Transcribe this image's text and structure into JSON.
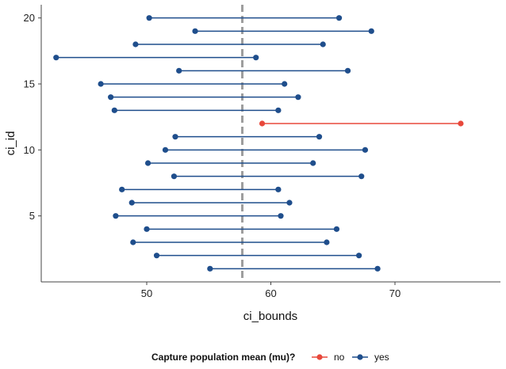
{
  "chart_data": {
    "type": "line",
    "title": "",
    "xlabel": "ci_bounds",
    "ylabel": "ci_id",
    "xlim": [
      41.5,
      78.5
    ],
    "ylim": [
      0,
      21
    ],
    "x_ticks": [
      50,
      60,
      70
    ],
    "y_ticks": [
      5,
      10,
      15,
      20
    ],
    "grid": false,
    "reference_line": {
      "x": 57.7,
      "style": "dashed",
      "color": "#9e9e9e"
    },
    "legend": {
      "position": "bottom",
      "title": "Capture population mean (mu)?",
      "entries": [
        {
          "label": "no",
          "color": "#e8483b"
        },
        {
          "label": "yes",
          "color": "#1f4e8c"
        }
      ]
    },
    "intervals": [
      {
        "id": 1,
        "lower": 55.1,
        "upper": 68.6,
        "capture": "yes"
      },
      {
        "id": 2,
        "lower": 50.8,
        "upper": 67.1,
        "capture": "yes"
      },
      {
        "id": 3,
        "lower": 48.9,
        "upper": 64.5,
        "capture": "yes"
      },
      {
        "id": 4,
        "lower": 50.0,
        "upper": 65.3,
        "capture": "yes"
      },
      {
        "id": 5,
        "lower": 47.5,
        "upper": 60.8,
        "capture": "yes"
      },
      {
        "id": 6,
        "lower": 48.8,
        "upper": 61.5,
        "capture": "yes"
      },
      {
        "id": 7,
        "lower": 48.0,
        "upper": 60.6,
        "capture": "yes"
      },
      {
        "id": 8,
        "lower": 52.2,
        "upper": 67.3,
        "capture": "yes"
      },
      {
        "id": 9,
        "lower": 50.1,
        "upper": 63.4,
        "capture": "yes"
      },
      {
        "id": 10,
        "lower": 51.5,
        "upper": 67.6,
        "capture": "yes"
      },
      {
        "id": 11,
        "lower": 52.3,
        "upper": 63.9,
        "capture": "yes"
      },
      {
        "id": 12,
        "lower": 59.3,
        "upper": 75.3,
        "capture": "no"
      },
      {
        "id": 13,
        "lower": 47.4,
        "upper": 60.6,
        "capture": "yes"
      },
      {
        "id": 14,
        "lower": 47.1,
        "upper": 62.2,
        "capture": "yes"
      },
      {
        "id": 15,
        "lower": 46.3,
        "upper": 61.1,
        "capture": "yes"
      },
      {
        "id": 16,
        "lower": 52.6,
        "upper": 66.2,
        "capture": "yes"
      },
      {
        "id": 17,
        "lower": 42.7,
        "upper": 58.8,
        "capture": "yes"
      },
      {
        "id": 18,
        "lower": 49.1,
        "upper": 64.2,
        "capture": "yes"
      },
      {
        "id": 19,
        "lower": 53.9,
        "upper": 68.1,
        "capture": "yes"
      },
      {
        "id": 20,
        "lower": 50.2,
        "upper": 65.5,
        "capture": "yes"
      }
    ]
  }
}
